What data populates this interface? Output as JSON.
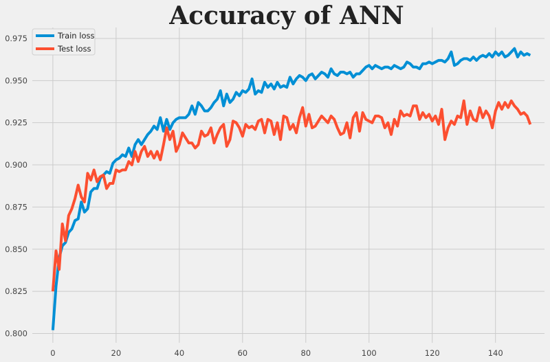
{
  "colors": {
    "background": "#f0f0f0",
    "grid": "#cbcbcb",
    "train": "#008fd5",
    "test": "#fc4f30"
  },
  "chart_data": {
    "type": "line",
    "title": "Accuracy of ANN",
    "xlabel": "",
    "ylabel": "",
    "xlim": [
      -6.5,
      155.5
    ],
    "ylim": [
      0.7945,
      0.9815
    ],
    "xticks": [
      0,
      20,
      40,
      60,
      80,
      100,
      120,
      140
    ],
    "xtick_labels": [
      "0",
      "20",
      "40",
      "60",
      "80",
      "100",
      "120",
      "140"
    ],
    "yticks": [
      0.8,
      0.825,
      0.85,
      0.875,
      0.9,
      0.925,
      0.95,
      0.975
    ],
    "ytick_labels": [
      "0.800",
      "0.825",
      "0.850",
      "0.875",
      "0.900",
      "0.925",
      "0.950",
      "0.975"
    ],
    "grid": true,
    "legend_position": "top-left",
    "series": [
      {
        "name": "Train loss",
        "color": "#008fd5",
        "values": [
          0.802,
          0.828,
          0.845,
          0.852,
          0.854,
          0.86,
          0.862,
          0.867,
          0.868,
          0.878,
          0.872,
          0.874,
          0.884,
          0.886,
          0.886,
          0.892,
          0.894,
          0.896,
          0.895,
          0.901,
          0.903,
          0.904,
          0.906,
          0.905,
          0.91,
          0.905,
          0.912,
          0.915,
          0.912,
          0.915,
          0.918,
          0.92,
          0.923,
          0.921,
          0.928,
          0.92,
          0.927,
          0.921,
          0.925,
          0.927,
          0.928,
          0.928,
          0.928,
          0.93,
          0.935,
          0.93,
          0.937,
          0.935,
          0.932,
          0.932,
          0.934,
          0.937,
          0.939,
          0.944,
          0.935,
          0.942,
          0.937,
          0.939,
          0.943,
          0.941,
          0.944,
          0.943,
          0.945,
          0.951,
          0.942,
          0.944,
          0.943,
          0.949,
          0.946,
          0.948,
          0.945,
          0.949,
          0.946,
          0.947,
          0.946,
          0.952,
          0.948,
          0.951,
          0.953,
          0.952,
          0.95,
          0.953,
          0.954,
          0.951,
          0.953,
          0.955,
          0.954,
          0.952,
          0.957,
          0.954,
          0.953,
          0.955,
          0.955,
          0.954,
          0.955,
          0.952,
          0.954,
          0.954,
          0.956,
          0.958,
          0.959,
          0.957,
          0.959,
          0.958,
          0.957,
          0.958,
          0.958,
          0.957,
          0.959,
          0.958,
          0.957,
          0.958,
          0.961,
          0.96,
          0.958,
          0.958,
          0.957,
          0.96,
          0.96,
          0.961,
          0.96,
          0.961,
          0.962,
          0.962,
          0.961,
          0.963,
          0.967,
          0.959,
          0.96,
          0.962,
          0.963,
          0.963,
          0.962,
          0.964,
          0.962,
          0.964,
          0.965,
          0.964,
          0.966,
          0.964,
          0.967,
          0.965,
          0.967,
          0.964,
          0.965,
          0.967,
          0.969,
          0.964,
          0.967,
          0.965,
          0.966,
          0.965
        ]
      },
      {
        "name": "Test loss",
        "color": "#fc4f30",
        "values": [
          0.825,
          0.849,
          0.838,
          0.865,
          0.855,
          0.87,
          0.874,
          0.88,
          0.888,
          0.881,
          0.878,
          0.895,
          0.891,
          0.897,
          0.89,
          0.893,
          0.894,
          0.886,
          0.889,
          0.889,
          0.897,
          0.896,
          0.897,
          0.897,
          0.902,
          0.9,
          0.908,
          0.902,
          0.908,
          0.911,
          0.905,
          0.908,
          0.904,
          0.908,
          0.903,
          0.912,
          0.922,
          0.915,
          0.92,
          0.908,
          0.912,
          0.919,
          0.916,
          0.913,
          0.913,
          0.91,
          0.912,
          0.92,
          0.917,
          0.918,
          0.922,
          0.913,
          0.918,
          0.922,
          0.924,
          0.911,
          0.915,
          0.926,
          0.925,
          0.922,
          0.917,
          0.924,
          0.922,
          0.923,
          0.921,
          0.926,
          0.927,
          0.919,
          0.927,
          0.926,
          0.918,
          0.925,
          0.915,
          0.929,
          0.928,
          0.921,
          0.924,
          0.919,
          0.928,
          0.934,
          0.923,
          0.93,
          0.922,
          0.923,
          0.926,
          0.929,
          0.927,
          0.925,
          0.929,
          0.927,
          0.922,
          0.918,
          0.919,
          0.925,
          0.916,
          0.928,
          0.931,
          0.92,
          0.931,
          0.927,
          0.926,
          0.925,
          0.929,
          0.929,
          0.928,
          0.922,
          0.925,
          0.918,
          0.927,
          0.923,
          0.932,
          0.929,
          0.93,
          0.929,
          0.935,
          0.935,
          0.927,
          0.931,
          0.928,
          0.93,
          0.926,
          0.929,
          0.924,
          0.933,
          0.915,
          0.922,
          0.926,
          0.924,
          0.929,
          0.928,
          0.938,
          0.924,
          0.932,
          0.927,
          0.926,
          0.934,
          0.928,
          0.932,
          0.929,
          0.922,
          0.932,
          0.937,
          0.933,
          0.937,
          0.934,
          0.938,
          0.935,
          0.933,
          0.93,
          0.931,
          0.929,
          0.924
        ]
      }
    ]
  }
}
